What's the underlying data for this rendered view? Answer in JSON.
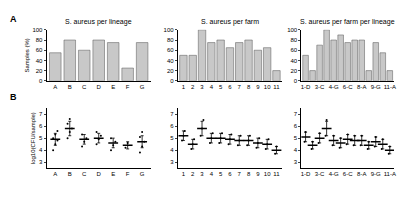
{
  "chart_data": [
    {
      "type": "bar",
      "title": "S. aureus per lineage",
      "ylabel": "Samples (%)",
      "annotations": [
        "A"
      ],
      "categories": [
        "A",
        "B",
        "C",
        "D",
        "E",
        "F",
        "G"
      ],
      "values": [
        55,
        80,
        60,
        80,
        75,
        25,
        75
      ],
      "color": "#c8c8c8",
      "ylim": [
        0,
        100
      ],
      "yticks": [
        0,
        20,
        40,
        60,
        80,
        100
      ]
    },
    {
      "type": "bar",
      "title": "S. aureus per farm",
      "categories": [
        "1",
        "2",
        "3",
        "4",
        "5",
        "6",
        "7",
        "8",
        "9",
        "10",
        "11"
      ],
      "values": [
        50,
        50,
        100,
        75,
        80,
        65,
        75,
        80,
        60,
        65,
        20
      ],
      "color": "#c8c8c8",
      "ylim": [
        0,
        100
      ],
      "yticks": [
        0,
        20,
        40,
        60,
        80,
        100
      ]
    },
    {
      "type": "bar",
      "title": "S. aureus per farm per lineage",
      "categories": [
        "1-D",
        null,
        "3-C",
        null,
        "4-G",
        null,
        "6-C",
        null,
        "8-A",
        null,
        "9-G",
        null,
        "11-A"
      ],
      "values": [
        50,
        20,
        70,
        100,
        80,
        90,
        75,
        80,
        80,
        20,
        75,
        55,
        20
      ],
      "color": "#c8c8c8",
      "ylim": [
        0,
        100
      ],
      "yticks": [
        0,
        20,
        40,
        60,
        80,
        100
      ]
    },
    {
      "type": "scatter",
      "ylabel": "log10(CFU/sample)",
      "annotations": [
        "B"
      ],
      "categories": [
        "A",
        "B",
        "C",
        "D",
        "E",
        "F",
        "G"
      ],
      "means": [
        4.9,
        5.8,
        4.9,
        5.0,
        4.6,
        4.4,
        4.7
      ],
      "errors": [
        0.5,
        0.6,
        0.4,
        0.4,
        0.4,
        0.3,
        0.5
      ],
      "points": [
        [
          4.0,
          4.5,
          4.8,
          5.0,
          5.3,
          5.6
        ],
        [
          5.0,
          5.5,
          5.8,
          6.2,
          6.6
        ],
        [
          4.3,
          4.7,
          5.0,
          5.3
        ],
        [
          4.5,
          4.9,
          5.2,
          5.5
        ],
        [
          4.0,
          4.4,
          4.7,
          5.0
        ],
        [
          4.2,
          4.6
        ],
        [
          3.8,
          4.3,
          4.7,
          5.1,
          5.5
        ]
      ],
      "color": "#000000",
      "ylim": [
        2.5,
        7.5
      ],
      "yticks": [
        3,
        4,
        5,
        6,
        7
      ]
    },
    {
      "type": "scatter",
      "categories": [
        "1",
        "2",
        "3",
        "4",
        "5",
        "6",
        "7",
        "8",
        "9",
        "10",
        "11"
      ],
      "means": [
        5.2,
        4.5,
        5.8,
        5.0,
        5.0,
        4.9,
        4.8,
        4.8,
        4.6,
        4.5,
        4.0
      ],
      "errors": [
        0.4,
        0.4,
        0.6,
        0.4,
        0.4,
        0.4,
        0.4,
        0.4,
        0.4,
        0.4,
        0.3
      ],
      "points": [
        [
          4.8,
          5.2,
          5.6
        ],
        [
          4.1,
          4.5,
          4.9
        ],
        [
          5.2,
          5.8,
          6.5
        ],
        [
          4.6,
          5.0,
          5.4
        ],
        [
          4.6,
          5.0,
          5.4
        ],
        [
          4.5,
          4.9,
          5.3
        ],
        [
          4.4,
          4.8,
          5.2
        ],
        [
          4.4,
          4.8,
          5.2
        ],
        [
          4.2,
          4.6,
          5.0
        ],
        [
          4.1,
          4.5,
          4.9
        ],
        [
          3.7,
          4.3
        ]
      ],
      "color": "#000000",
      "ylim": [
        2.5,
        7.5
      ],
      "yticks": [
        3,
        4,
        5,
        6,
        7
      ]
    },
    {
      "type": "scatter",
      "categories": [
        "1-D",
        null,
        "3-C",
        null,
        "4-G",
        null,
        "6-C",
        null,
        "8-A",
        null,
        "9-G",
        null,
        "11-A"
      ],
      "means": [
        5.1,
        4.4,
        5.0,
        5.8,
        4.8,
        4.6,
        4.9,
        4.8,
        4.8,
        4.4,
        4.7,
        4.5,
        4.0
      ],
      "errors": [
        0.4,
        0.3,
        0.4,
        0.6,
        0.4,
        0.4,
        0.4,
        0.4,
        0.4,
        0.3,
        0.4,
        0.4,
        0.3
      ],
      "points": [
        [
          4.7,
          5.5
        ],
        [
          4.1,
          4.7
        ],
        [
          4.6,
          5.4
        ],
        [
          5.2,
          6.5
        ],
        [
          4.4,
          5.2
        ],
        [
          4.2,
          5.0
        ],
        [
          4.5,
          5.3
        ],
        [
          4.4,
          5.2
        ],
        [
          4.4,
          5.2
        ],
        [
          4.1,
          4.7
        ],
        [
          4.3,
          5.1
        ],
        [
          4.1,
          4.9
        ],
        [
          3.7,
          4.3
        ]
      ],
      "color": "#000000",
      "ylim": [
        2.5,
        7.5
      ],
      "yticks": [
        3,
        4,
        5,
        6,
        7
      ]
    }
  ]
}
